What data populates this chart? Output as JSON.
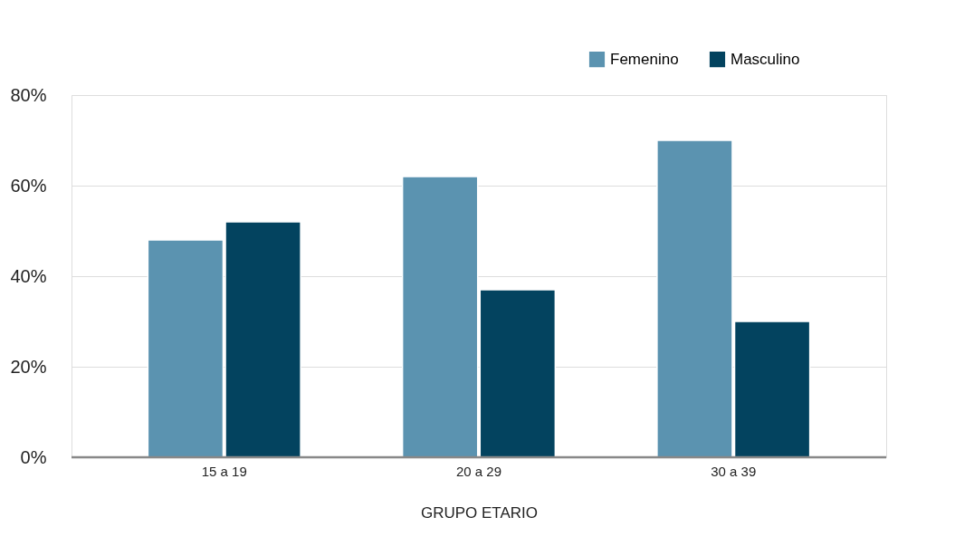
{
  "chart_data": {
    "type": "bar",
    "xlabel": "GRUPO ETARIO",
    "categories": [
      "15 a 19",
      "20 a 29",
      "30 a 39"
    ],
    "series": [
      {
        "name": "Femenino",
        "color": "#5b93b0",
        "values": [
          48,
          62,
          70
        ]
      },
      {
        "name": "Masculino",
        "color": "#03435f",
        "values": [
          52,
          37,
          30
        ]
      }
    ],
    "ylim": [
      0,
      80
    ],
    "yticks": [
      {
        "value": 0,
        "label": "0%"
      },
      {
        "value": 20,
        "label": "20%"
      },
      {
        "value": 40,
        "label": "40%"
      },
      {
        "value": 60,
        "label": "60%"
      },
      {
        "value": 80,
        "label": "80%"
      }
    ],
    "grid": "y",
    "legend": "top right"
  }
}
